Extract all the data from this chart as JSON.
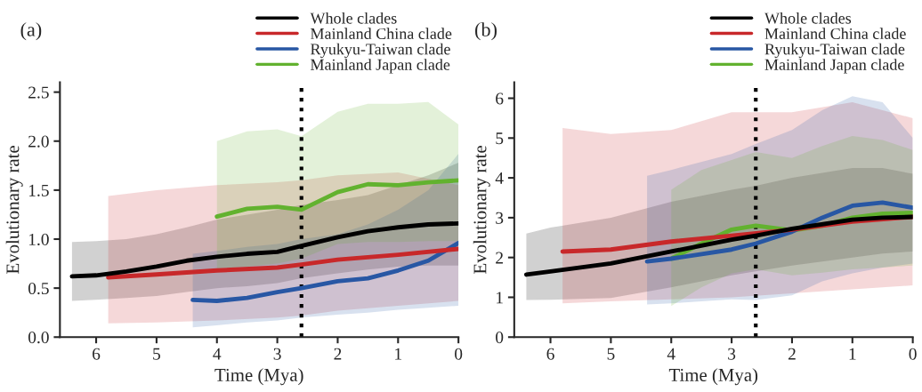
{
  "chart_data": [
    {
      "type": "line",
      "title": "(a)",
      "xlabel": "Time (Mya)",
      "ylabel": "Evolutionary rate",
      "xlim": [
        6.6,
        0
      ],
      "xticks": [
        6,
        5,
        4,
        3,
        2,
        1,
        0
      ],
      "ylim": [
        0,
        2.6
      ],
      "yticks": [
        {
          "value": 0,
          "label": "0.0"
        },
        {
          "value": 0.5,
          "label": "0.5"
        },
        {
          "value": 1,
          "label": "1.0"
        },
        {
          "value": 1.5,
          "label": "1.5"
        },
        {
          "value": 2,
          "label": "2.0"
        },
        {
          "value": 2.5,
          "label": "2.5"
        }
      ],
      "grid": false,
      "legend": "top right",
      "line_style": "solid",
      "marker": "none",
      "ref_lines": [
        {
          "axis": "x",
          "value": 2.6,
          "color": "#000000",
          "line_style": "dotted"
        }
      ],
      "series": [
        {
          "name": "Whole clades",
          "color": "#000000",
          "x": [
            6.4,
            6,
            5.5,
            5,
            4.5,
            4,
            3.5,
            3,
            2.6,
            2,
            1.5,
            1,
            0.5,
            0
          ],
          "values": [
            0.62,
            0.63,
            0.67,
            0.72,
            0.78,
            0.82,
            0.85,
            0.87,
            0.93,
            1.02,
            1.08,
            1.12,
            1.15,
            1.16
          ],
          "lower": [
            0.37,
            0.38,
            0.4,
            0.42,
            0.46,
            0.5,
            0.52,
            0.55,
            0.6,
            0.65,
            0.69,
            0.72,
            0.73,
            0.73
          ],
          "upper": [
            0.97,
            0.98,
            1.0,
            1.05,
            1.12,
            1.2,
            1.25,
            1.3,
            1.35,
            1.4,
            1.45,
            1.55,
            1.65,
            1.78
          ]
        },
        {
          "name": "Mainland China clade",
          "color": "#c8282a",
          "x": [
            5.8,
            5,
            4,
            3,
            2.6,
            2,
            1,
            0
          ],
          "values": [
            0.61,
            0.64,
            0.68,
            0.71,
            0.74,
            0.79,
            0.84,
            0.9
          ],
          "lower": [
            0.14,
            0.15,
            0.17,
            0.2,
            0.22,
            0.27,
            0.32,
            0.37
          ],
          "upper": [
            1.44,
            1.5,
            1.55,
            1.58,
            1.6,
            1.65,
            1.68,
            1.55
          ]
        },
        {
          "name": "Ryukyu-Taiwan clade",
          "color": "#2857a4",
          "x": [
            4.4,
            4,
            3.5,
            3,
            2.6,
            2,
            1.5,
            1,
            0.5,
            0
          ],
          "values": [
            0.38,
            0.37,
            0.4,
            0.46,
            0.5,
            0.57,
            0.6,
            0.68,
            0.78,
            0.96
          ],
          "lower": [
            0.1,
            0.12,
            0.15,
            0.17,
            0.2,
            0.23,
            0.25,
            0.28,
            0.3,
            0.32
          ],
          "upper": [
            0.85,
            0.88,
            0.92,
            0.95,
            1.0,
            1.05,
            1.15,
            1.3,
            1.5,
            1.87
          ]
        },
        {
          "name": "Mainland Japan clade",
          "color": "#62b22f",
          "x": [
            4,
            3.5,
            3,
            2.6,
            2,
            1.5,
            1,
            0.5,
            0
          ],
          "values": [
            1.23,
            1.31,
            1.33,
            1.3,
            1.48,
            1.56,
            1.55,
            1.58,
            1.6
          ],
          "lower": [
            0.7,
            0.72,
            0.75,
            0.8,
            0.95,
            0.97,
            0.97,
            0.98,
            0.98
          ],
          "upper": [
            2.0,
            2.1,
            2.12,
            2.05,
            2.3,
            2.38,
            2.38,
            2.4,
            2.17
          ]
        }
      ]
    },
    {
      "type": "line",
      "title": "(b)",
      "xlabel": "Time (Mya)",
      "ylabel": "Evolutionary rate",
      "xlim": [
        6.6,
        0
      ],
      "xticks": [
        6,
        5,
        4,
        3,
        2,
        1,
        0
      ],
      "ylim": [
        0,
        6.4
      ],
      "yticks": [
        0,
        1,
        2,
        3,
        4,
        5,
        6
      ],
      "grid": false,
      "legend": "top right",
      "line_style": "solid",
      "marker": "none",
      "ref_lines": [
        {
          "axis": "x",
          "value": 2.6,
          "color": "#000000",
          "line_style": "dotted"
        }
      ],
      "series": [
        {
          "name": "Whole clades",
          "color": "#000000",
          "x": [
            6.4,
            6,
            5,
            4,
            3,
            2.6,
            2,
            1,
            0.5,
            0
          ],
          "values": [
            1.57,
            1.65,
            1.85,
            2.15,
            2.45,
            2.55,
            2.72,
            2.95,
            3.0,
            3.02
          ],
          "lower": [
            0.93,
            0.94,
            0.98,
            1.25,
            1.55,
            1.65,
            1.8,
            2.0,
            2.1,
            2.15
          ],
          "upper": [
            2.6,
            2.75,
            3.0,
            3.4,
            3.7,
            3.8,
            4.0,
            4.25,
            4.25,
            4.1
          ]
        },
        {
          "name": "Mainland China clade",
          "color": "#c8282a",
          "x": [
            5.8,
            5,
            4,
            3,
            2,
            1,
            0
          ],
          "values": [
            2.15,
            2.2,
            2.4,
            2.55,
            2.7,
            2.9,
            3.02
          ],
          "lower": [
            0.85,
            0.9,
            0.95,
            1.0,
            1.1,
            1.2,
            1.3
          ],
          "upper": [
            5.25,
            5.1,
            5.2,
            5.65,
            5.65,
            5.9,
            5.5
          ]
        },
        {
          "name": "Ryukyu-Taiwan clade",
          "color": "#2857a4",
          "x": [
            4.4,
            4,
            3,
            2.6,
            2,
            1.5,
            1,
            0.5,
            0
          ],
          "values": [
            1.9,
            1.97,
            2.2,
            2.35,
            2.65,
            3.0,
            3.3,
            3.38,
            3.25
          ],
          "lower": [
            0.82,
            0.85,
            0.95,
            0.93,
            1.05,
            1.4,
            1.6,
            1.75,
            1.85
          ],
          "upper": [
            4.05,
            4.2,
            4.6,
            4.85,
            5.2,
            5.7,
            6.05,
            5.9,
            5.0
          ]
        },
        {
          "name": "Mainland Japan clade",
          "color": "#62b22f",
          "x": [
            4,
            3.5,
            3,
            2.6,
            2,
            1.5,
            1,
            0.5,
            0
          ],
          "values": [
            1.97,
            2.35,
            2.7,
            2.8,
            2.68,
            2.8,
            3.0,
            3.1,
            3.12
          ],
          "lower": [
            0.78,
            1.25,
            1.6,
            1.7,
            1.55,
            1.62,
            1.7,
            1.75,
            1.8
          ],
          "upper": [
            3.7,
            4.2,
            4.45,
            4.65,
            4.5,
            4.8,
            5.05,
            4.95,
            4.7
          ]
        }
      ]
    }
  ]
}
